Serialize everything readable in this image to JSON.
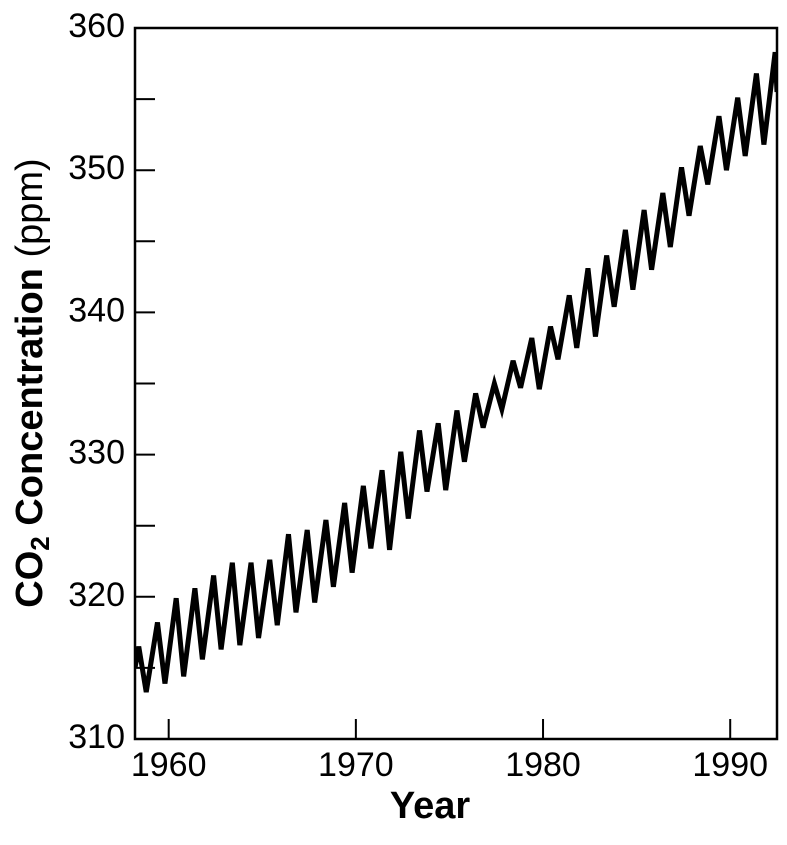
{
  "chart_data": {
    "type": "line",
    "xlabel": "Year",
    "ylabel": [
      "CO",
      "2",
      " Concentration",
      " (ppm)"
    ],
    "x": [
      1958.2,
      1958.4,
      1958.8,
      1959.4,
      1959.8,
      1960.4,
      1960.8,
      1961.4,
      1961.8,
      1962.4,
      1962.8,
      1963.4,
      1963.8,
      1964.4,
      1964.8,
      1965.4,
      1965.8,
      1966.4,
      1966.8,
      1967.4,
      1967.8,
      1968.4,
      1968.8,
      1969.4,
      1969.8,
      1970.4,
      1970.8,
      1971.4,
      1971.8,
      1972.4,
      1972.8,
      1973.4,
      1973.8,
      1974.4,
      1974.8,
      1975.4,
      1975.8,
      1976.4,
      1976.8,
      1977.4,
      1977.8,
      1978.4,
      1978.8,
      1979.4,
      1979.8,
      1980.4,
      1980.8,
      1981.4,
      1981.8,
      1982.4,
      1982.8,
      1983.4,
      1983.8,
      1984.4,
      1984.8,
      1985.4,
      1985.8,
      1986.4,
      1986.8,
      1987.4,
      1987.8,
      1988.4,
      1988.8,
      1989.4,
      1989.8,
      1990.4,
      1990.8,
      1991.4,
      1991.8,
      1992.4,
      1992.5
    ],
    "values": [
      315.0,
      316.5,
      313.3,
      318.2,
      313.9,
      319.9,
      314.4,
      320.6,
      315.6,
      321.5,
      316.3,
      322.4,
      316.6,
      322.4,
      317.1,
      322.6,
      318.0,
      324.4,
      318.9,
      324.7,
      319.6,
      325.4,
      320.7,
      326.6,
      321.7,
      327.8,
      323.4,
      328.9,
      323.3,
      330.2,
      325.5,
      331.7,
      327.4,
      332.2,
      327.5,
      333.1,
      329.5,
      334.3,
      331.9,
      335.0,
      333.2,
      336.6,
      334.7,
      338.2,
      334.6,
      339.0,
      336.7,
      341.2,
      337.5,
      343.1,
      338.3,
      344.0,
      340.4,
      345.8,
      341.6,
      347.2,
      343.0,
      348.4,
      344.6,
      350.2,
      346.8,
      351.7,
      349.0,
      353.8,
      350.0,
      355.1,
      351.0,
      356.8,
      351.8,
      358.3,
      355.5
    ],
    "color": "#000000",
    "xlim": [
      1958.2,
      1992.5
    ],
    "xticks": [
      1960,
      1970,
      1980,
      1990
    ],
    "ylim": [
      310,
      360
    ],
    "yticks": [
      310,
      320,
      330,
      340,
      350,
      360
    ],
    "yminorticks": [
      315,
      325,
      335,
      345,
      355
    ],
    "grid": false
  }
}
